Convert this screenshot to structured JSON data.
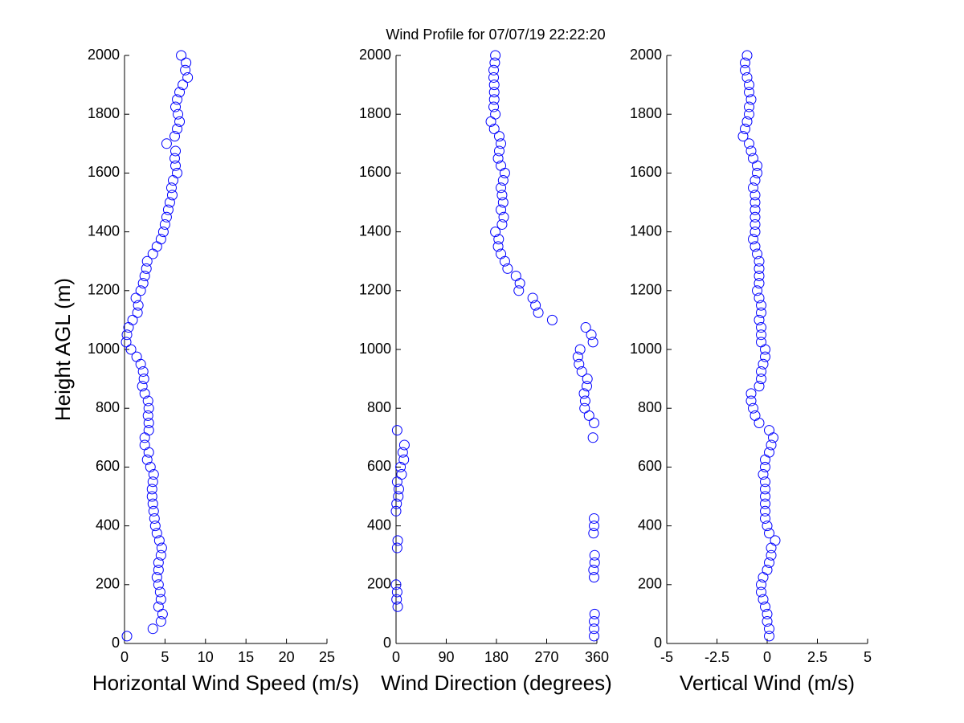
{
  "chart_data": [
    {
      "type": "scatter",
      "title": "Wind Profile for  07/07/19 22:22:20",
      "xlabel": "Horizontal Wind Speed (m/s)",
      "ylabel": "Height AGL (m)",
      "color": "#0000ff",
      "xlim": [
        0,
        25
      ],
      "xticks": [
        0,
        5,
        10,
        15,
        20,
        25
      ],
      "ylim": [
        0,
        2000
      ],
      "yticks": [
        0,
        200,
        400,
        600,
        800,
        1000,
        1200,
        1400,
        1600,
        1800,
        2000
      ],
      "x": [
        0.3,
        3.5,
        4.5,
        4.7,
        4.2,
        4.5,
        4.4,
        4.2,
        4.0,
        4.2,
        4.2,
        4.5,
        4.6,
        4.3,
        4.0,
        3.8,
        3.7,
        3.6,
        3.5,
        3.4,
        3.4,
        3.5,
        3.6,
        3.2,
        2.8,
        3.0,
        2.5,
        2.5,
        3.0,
        3.0,
        2.9,
        3.0,
        2.9,
        2.5,
        2.2,
        2.4,
        2.3,
        2.0,
        1.5,
        0.8,
        0.2,
        0.3,
        0.5,
        1.0,
        1.6,
        1.7,
        1.4,
        2.0,
        2.3,
        2.5,
        2.7,
        2.8,
        3.5,
        4.0,
        4.5,
        4.8,
        5.0,
        5.2,
        5.4,
        5.6,
        5.9,
        5.8,
        6.0,
        6.5,
        6.3,
        6.2,
        6.3,
        5.2,
        6.2,
        6.5,
        6.8,
        6.6,
        6.3,
        6.5,
        6.8,
        7.2,
        7.8,
        7.5,
        7.6,
        7.0
      ],
      "y": [
        25,
        50,
        75,
        100,
        125,
        150,
        175,
        200,
        225,
        250,
        275,
        300,
        325,
        350,
        375,
        400,
        425,
        450,
        475,
        500,
        525,
        550,
        575,
        600,
        625,
        650,
        675,
        700,
        725,
        750,
        775,
        800,
        825,
        850,
        875,
        900,
        925,
        950,
        975,
        1000,
        1025,
        1050,
        1075,
        1100,
        1125,
        1150,
        1175,
        1200,
        1225,
        1250,
        1275,
        1300,
        1325,
        1350,
        1375,
        1400,
        1425,
        1450,
        1475,
        1500,
        1525,
        1550,
        1575,
        1600,
        1625,
        1650,
        1675,
        1700,
        1725,
        1750,
        1775,
        1800,
        1825,
        1850,
        1875,
        1900,
        1925,
        1950,
        1975,
        2000
      ]
    },
    {
      "type": "scatter",
      "xlabel": "Wind Direction (degrees)",
      "color": "#0000ff",
      "xlim": [
        0,
        360
      ],
      "xticks": [
        0,
        90,
        180,
        270,
        360
      ],
      "ylim": [
        0,
        2000
      ],
      "yticks": [
        0,
        200,
        400,
        600,
        800,
        1000,
        1200,
        1400,
        1600,
        1800,
        2000
      ],
      "x": [
        355,
        355,
        355,
        356,
        3,
        1,
        2,
        0,
        355,
        354,
        356,
        356,
        2,
        3,
        354,
        355,
        355,
        0,
        1,
        4,
        5,
        2,
        10,
        8,
        14,
        12,
        15,
        353,
        2,
        355,
        346,
        338,
        339,
        337,
        342,
        343,
        333,
        328,
        326,
        330,
        353,
        350,
        340,
        280,
        255,
        250,
        245,
        220,
        222,
        215,
        200,
        195,
        188,
        183,
        184,
        178,
        190,
        193,
        188,
        192,
        190,
        188,
        192,
        195,
        188,
        183,
        185,
        188,
        185,
        176,
        170,
        178,
        175,
        176,
        176,
        176,
        175,
        175,
        177,
        178
      ],
      "y": [
        25,
        50,
        75,
        100,
        125,
        150,
        175,
        200,
        225,
        250,
        275,
        300,
        325,
        350,
        375,
        400,
        425,
        450,
        475,
        500,
        525,
        550,
        575,
        600,
        625,
        650,
        675,
        700,
        725,
        750,
        775,
        800,
        825,
        850,
        875,
        900,
        925,
        950,
        975,
        1000,
        1025,
        1050,
        1075,
        1100,
        1125,
        1150,
        1175,
        1200,
        1225,
        1250,
        1275,
        1300,
        1325,
        1350,
        1375,
        1400,
        1425,
        1450,
        1475,
        1500,
        1525,
        1550,
        1575,
        1600,
        1625,
        1650,
        1675,
        1700,
        1725,
        1750,
        1775,
        1800,
        1825,
        1850,
        1875,
        1900,
        1925,
        1950,
        1975,
        2000
      ]
    },
    {
      "type": "scatter",
      "xlabel": "Vertical Wind (m/s)",
      "color": "#0000ff",
      "xlim": [
        -5,
        5
      ],
      "xticks": [
        -5,
        -2.5,
        0,
        2.5,
        5
      ],
      "ylim": [
        0,
        2000
      ],
      "yticks": [
        0,
        200,
        400,
        600,
        800,
        1000,
        1200,
        1400,
        1600,
        1800,
        2000
      ],
      "x": [
        0.1,
        0.1,
        0.0,
        0.0,
        -0.1,
        -0.2,
        -0.3,
        -0.3,
        -0.2,
        0.0,
        0.1,
        0.2,
        0.2,
        0.4,
        0.1,
        0.0,
        -0.1,
        -0.1,
        -0.1,
        -0.1,
        -0.1,
        -0.1,
        -0.2,
        -0.1,
        -0.1,
        0.1,
        0.2,
        0.3,
        0.1,
        -0.4,
        -0.6,
        -0.7,
        -0.8,
        -0.8,
        -0.4,
        -0.3,
        -0.3,
        -0.2,
        -0.1,
        -0.1,
        -0.3,
        -0.3,
        -0.3,
        -0.4,
        -0.3,
        -0.3,
        -0.4,
        -0.5,
        -0.4,
        -0.4,
        -0.4,
        -0.4,
        -0.5,
        -0.6,
        -0.7,
        -0.6,
        -0.6,
        -0.6,
        -0.6,
        -0.6,
        -0.6,
        -0.7,
        -0.6,
        -0.5,
        -0.5,
        -0.7,
        -0.8,
        -0.9,
        -1.2,
        -1.1,
        -1.0,
        -0.9,
        -0.9,
        -0.8,
        -0.9,
        -0.9,
        -1.0,
        -1.1,
        -1.1,
        -1.0
      ],
      "y": [
        25,
        50,
        75,
        100,
        125,
        150,
        175,
        200,
        225,
        250,
        275,
        300,
        325,
        350,
        375,
        400,
        425,
        450,
        475,
        500,
        525,
        550,
        575,
        600,
        625,
        650,
        675,
        700,
        725,
        750,
        775,
        800,
        825,
        850,
        875,
        900,
        925,
        950,
        975,
        1000,
        1025,
        1050,
        1075,
        1100,
        1125,
        1150,
        1175,
        1200,
        1225,
        1250,
        1275,
        1300,
        1325,
        1350,
        1375,
        1400,
        1425,
        1450,
        1475,
        1500,
        1525,
        1550,
        1575,
        1600,
        1625,
        1650,
        1675,
        1700,
        1725,
        1750,
        1775,
        1800,
        1825,
        1850,
        1875,
        1900,
        1925,
        1950,
        1975,
        2000
      ]
    }
  ]
}
